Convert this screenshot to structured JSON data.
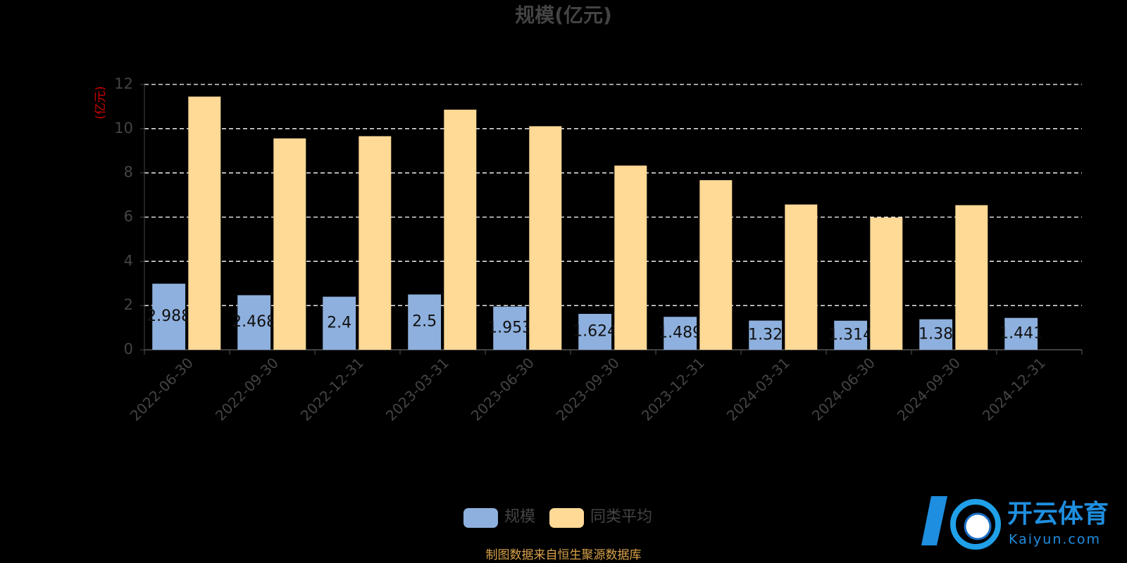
{
  "chart_data": {
    "type": "bar",
    "title": "规模(亿元)",
    "y_axis_label": "(亿元)",
    "categories": [
      "2022-06-30",
      "2022-09-30",
      "2022-12-31",
      "2023-03-31",
      "2023-06-30",
      "2023-09-30",
      "2023-12-31",
      "2024-03-31",
      "2024-06-30",
      "2024-09-30",
      "2024-12-31"
    ],
    "series": [
      {
        "name": "规模",
        "color": "#8eb0de",
        "values": [
          2.988,
          2.468,
          2.4,
          2.5,
          1.953,
          1.624,
          1.489,
          1.32,
          1.314,
          1.38,
          1.441
        ]
      },
      {
        "name": "同类平均",
        "color": "#ffd996",
        "values": [
          11.45,
          9.56,
          9.66,
          10.86,
          10.11,
          8.33,
          7.67,
          6.57,
          5.98,
          6.54,
          null
        ]
      }
    ],
    "ylim": [
      0,
      12
    ],
    "yticks": [
      0,
      2,
      4,
      6,
      8,
      10,
      12
    ],
    "grid": true,
    "footer": "制图数据来自恒生聚源数据库",
    "watermark": {
      "name": "开云体育",
      "site": "Kaiyun.com"
    }
  }
}
